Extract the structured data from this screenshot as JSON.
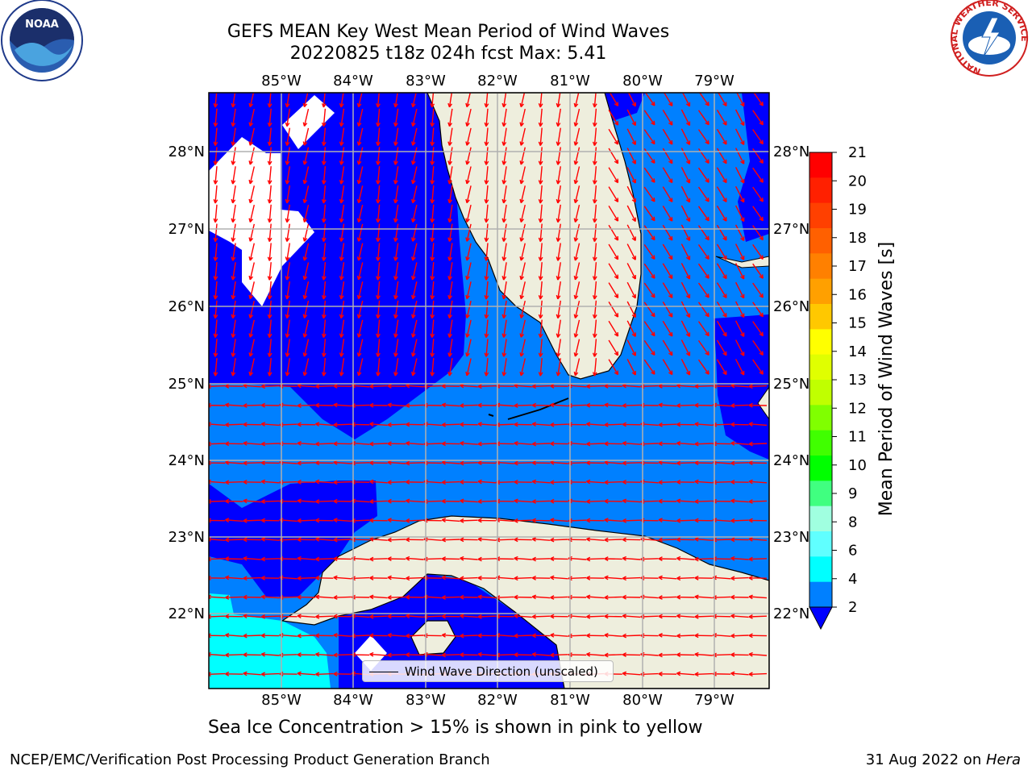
{
  "header": {
    "title_line1": "GEFS MEAN Key West Mean Period of Wind Waves",
    "title_line2": "20220825 t18z 024h fcst   Max: 5.41"
  },
  "logos": {
    "left": {
      "icon": "noaa-logo-icon",
      "text": "NOAA"
    },
    "right": {
      "icon": "nws-logo-icon",
      "ring_text": "NATIONAL WEATHER SERVICE"
    }
  },
  "map": {
    "lon_labels": [
      "85°W",
      "84°W",
      "83°W",
      "82°W",
      "81°W",
      "80°W",
      "79°W"
    ],
    "lat_labels": [
      "28°N",
      "27°N",
      "26°N",
      "25°N",
      "24°N",
      "23°N",
      "22°N"
    ],
    "legend_label": "Wind Wave Direction (unscaled)",
    "colors": {
      "land": "#eeeedd",
      "deep": "#0000ff",
      "mid": "#0080ff",
      "cyan": "#00ffff",
      "arrow": "#ff0000",
      "grid": "#b0b0b0"
    }
  },
  "colorbar": {
    "title": "Mean Period of Wind Waves [s]",
    "ticks": [
      "21",
      "20",
      "19",
      "18",
      "17",
      "16",
      "15",
      "14",
      "13",
      "12",
      "11",
      "10",
      "9",
      "8",
      "6",
      "4",
      "2"
    ],
    "colors": [
      "#ff0000",
      "#ff2000",
      "#ff4000",
      "#ff6000",
      "#ff8000",
      "#ffa000",
      "#ffc800",
      "#ffff00",
      "#e0ff00",
      "#c0ff00",
      "#80ff00",
      "#40ff00",
      "#00ff00",
      "#40ff80",
      "#a0ffe0",
      "#60ffff",
      "#00ffff",
      "#0080ff"
    ],
    "underflow_color": "#0000ff"
  },
  "subtitle": "Sea Ice Concentration > 15% is shown in pink to yellow",
  "footer": {
    "left": "NCEP/EMC/Verification Post Processing Product Generation Branch",
    "right_date": "31 Aug 2022 on ",
    "right_host": "Hera"
  }
}
